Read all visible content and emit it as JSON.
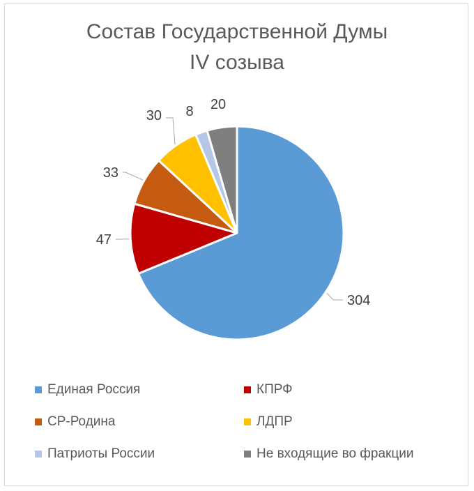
{
  "chart_data": {
    "type": "pie",
    "title_lines": [
      "Состав Государственной Думы",
      "IV созыва"
    ],
    "categories": [
      "Единая Россия",
      "КПРФ",
      "СР-Родина",
      "ЛДПР",
      "Патриоты России",
      "Не входящие во фракции"
    ],
    "values": [
      304,
      47,
      33,
      30,
      8,
      20
    ],
    "data_labels": [
      "304",
      "47",
      "33",
      "30",
      "8",
      "20"
    ],
    "colors": [
      "#5b9bd5",
      "#c00000",
      "#c55a11",
      "#ffc000",
      "#b4c7e7",
      "#7f7f7f"
    ],
    "legend_position": "bottom"
  }
}
